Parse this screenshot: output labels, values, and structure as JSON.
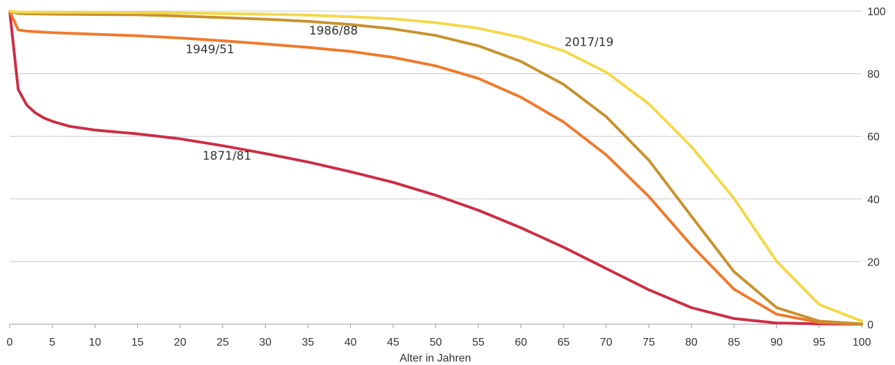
{
  "chart_data": {
    "type": "line",
    "title": "",
    "xlabel": "Alter in Jahren",
    "ylabel": "",
    "xlim": [
      0,
      100
    ],
    "ylim": [
      0,
      100
    ],
    "x_ticks": [
      0,
      5,
      10,
      15,
      20,
      25,
      30,
      35,
      40,
      45,
      50,
      55,
      60,
      65,
      70,
      75,
      80,
      85,
      90,
      95,
      100
    ],
    "y_ticks": [
      0,
      20,
      40,
      60,
      80,
      100
    ],
    "y_axis_side": "right",
    "grid": "horizontal",
    "legend": "none (series labelled directly on lines)",
    "series": [
      {
        "name": "1871/81",
        "color": "#cc2e45",
        "x": [
          0,
          1,
          2,
          3,
          4,
          5,
          7,
          10,
          15,
          20,
          25,
          30,
          35,
          40,
          45,
          50,
          55,
          60,
          65,
          70,
          75,
          80,
          85,
          90,
          95,
          100
        ],
        "y": [
          100,
          75,
          70,
          67.5,
          65.9,
          64.8,
          63.2,
          62,
          60.8,
          59.2,
          57,
          54.5,
          51.8,
          48.7,
          45.3,
          41.2,
          36.4,
          30.8,
          24.6,
          17.8,
          11,
          5.3,
          1.8,
          0.4,
          0.1,
          0
        ]
      },
      {
        "name": "1949/51",
        "color": "#f07a2c",
        "x": [
          0,
          1,
          2,
          5,
          10,
          15,
          20,
          25,
          30,
          35,
          40,
          45,
          50,
          55,
          60,
          65,
          70,
          75,
          80,
          85,
          90,
          95,
          100
        ],
        "y": [
          100,
          94,
          93.6,
          93.1,
          92.6,
          92.1,
          91.4,
          90.5,
          89.5,
          88.4,
          87.1,
          85.2,
          82.5,
          78.5,
          72.5,
          64.6,
          54.1,
          40.8,
          25.2,
          11.2,
          3.2,
          0.6,
          0
        ]
      },
      {
        "name": "1986/88",
        "color": "#c8922e",
        "x": [
          0,
          1,
          5,
          10,
          15,
          20,
          25,
          30,
          35,
          40,
          45,
          50,
          55,
          60,
          65,
          70,
          75,
          80,
          85,
          90,
          95,
          100
        ],
        "y": [
          100,
          99.2,
          99,
          98.9,
          98.8,
          98.4,
          97.9,
          97.4,
          96.7,
          95.7,
          94.3,
          92.2,
          88.9,
          83.9,
          76.6,
          66.3,
          52.4,
          34.5,
          16.8,
          5.3,
          1,
          0.1
        ]
      },
      {
        "name": "2017/19",
        "color": "#f3d84a",
        "x": [
          0,
          1,
          5,
          10,
          15,
          20,
          25,
          30,
          35,
          40,
          45,
          50,
          55,
          60,
          65,
          70,
          75,
          80,
          85,
          90,
          95,
          100
        ],
        "y": [
          100,
          99.7,
          99.6,
          99.6,
          99.5,
          99.4,
          99.2,
          99,
          98.7,
          98.2,
          97.5,
          96.3,
          94.5,
          91.6,
          87.3,
          80.5,
          70.4,
          56.7,
          40.2,
          20.1,
          6.3,
          1
        ]
      }
    ],
    "annotations": [
      {
        "text": "1871/81",
        "series": "1871/81",
        "x": 25.5,
        "y": 52.5
      },
      {
        "text": "1949/51",
        "series": "1949/51",
        "x": 23.5,
        "y": 86.5
      },
      {
        "text": "1986/88",
        "series": "1986/88",
        "x": 38,
        "y": 92.5
      },
      {
        "text": "2017/19",
        "series": "2017/19",
        "x": 68,
        "y": 88.8
      }
    ]
  }
}
